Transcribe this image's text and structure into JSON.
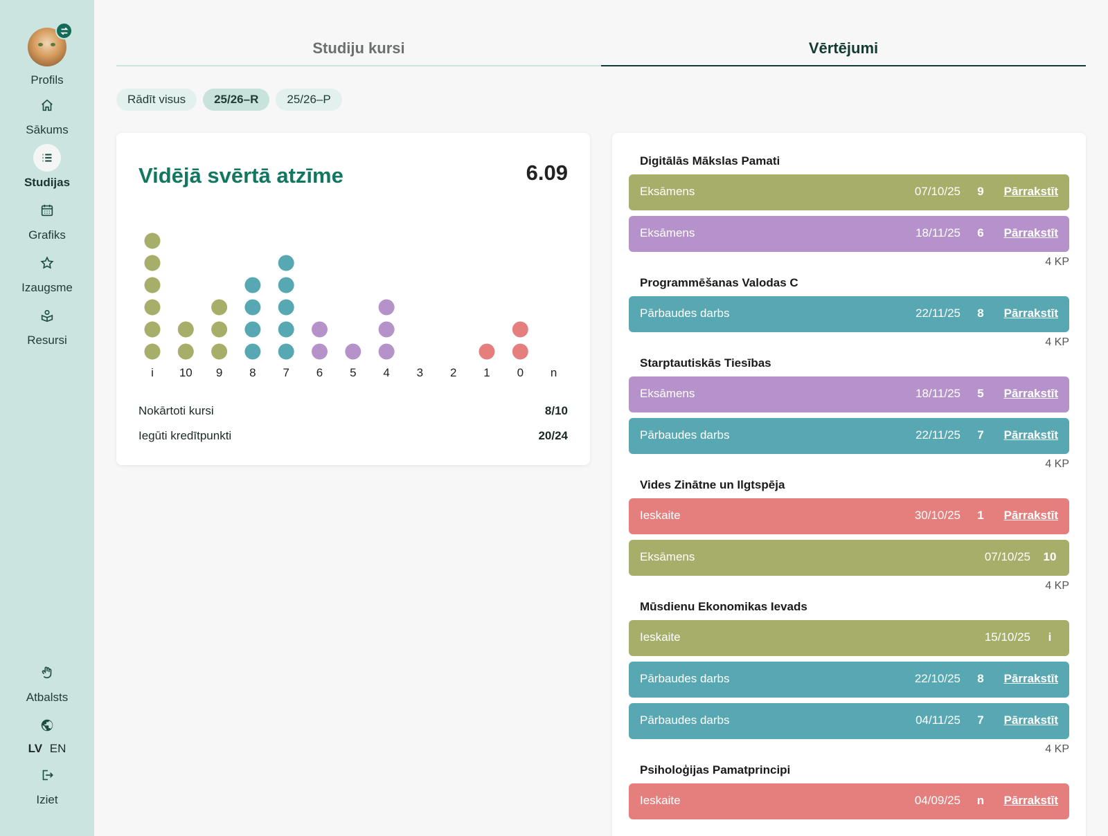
{
  "sidebar": {
    "profile_label": "Profils",
    "items": [
      {
        "label": "Sākums",
        "icon": "home-icon"
      },
      {
        "label": "Studijas",
        "icon": "list-icon"
      },
      {
        "label": "Grafiks",
        "icon": "calendar-icon"
      },
      {
        "label": "Izaugsme",
        "icon": "star-icon"
      },
      {
        "label": "Resursi",
        "icon": "resources-icon"
      }
    ],
    "support_label": "Atbalsts",
    "lang_lv": "LV",
    "lang_en": "EN",
    "logout_label": "Iziet"
  },
  "tabs": [
    {
      "label": "Studiju kursi",
      "active": false
    },
    {
      "label": "Vērtējumi",
      "active": true
    }
  ],
  "filters": [
    {
      "label": "Rādīt visus",
      "active": false
    },
    {
      "label": "25/26–R",
      "active": true
    },
    {
      "label": "25/26–P",
      "active": false
    }
  ],
  "summary": {
    "title": "Vidējā svērtā atzīme",
    "value": "6.09",
    "passed_label": "Nokārtoti kursi",
    "passed_value": "8/10",
    "credits_label": "Iegūti kredītpunkti",
    "credits_value": "20/24"
  },
  "colors": {
    "olive": "#a6ae6a",
    "teal": "#57a8b2",
    "purple": "#b692cb",
    "red": "#e57f7d",
    "brand": "#117760"
  },
  "chart_data": {
    "type": "dot",
    "categories": [
      "i",
      "10",
      "9",
      "8",
      "7",
      "6",
      "5",
      "4",
      "3",
      "2",
      "1",
      "0",
      "n"
    ],
    "series": [
      {
        "color": "olive",
        "values": [
          6,
          2,
          3,
          0,
          0,
          0,
          0,
          0,
          0,
          0,
          0,
          0,
          0
        ]
      },
      {
        "color": "teal",
        "values": [
          0,
          0,
          0,
          4,
          5,
          0,
          0,
          0,
          0,
          0,
          0,
          0,
          0
        ]
      },
      {
        "color": "purple",
        "values": [
          0,
          0,
          0,
          0,
          0,
          2,
          1,
          3,
          0,
          0,
          0,
          0,
          0
        ]
      },
      {
        "color": "red",
        "values": [
          0,
          0,
          0,
          0,
          0,
          0,
          0,
          0,
          0,
          0,
          1,
          2,
          0
        ]
      }
    ]
  },
  "courses": [
    {
      "name": "Digitālās Mākslas Pamati",
      "credits": "4 KP",
      "grades": [
        {
          "type": "Eksāmens",
          "date": "07/10/25",
          "mark": "9",
          "action": "Pārrakstīt",
          "color": "olive"
        },
        {
          "type": "Eksāmens",
          "date": "18/11/25",
          "mark": "6",
          "action": "Pārrakstīt",
          "color": "purple"
        }
      ]
    },
    {
      "name": "Programmēšanas Valodas C",
      "credits": "4 KP",
      "grades": [
        {
          "type": "Pārbaudes darbs",
          "date": "22/11/25",
          "mark": "8",
          "action": "Pārrakstīt",
          "color": "teal"
        }
      ]
    },
    {
      "name": "Starptautiskās Tiesības",
      "credits": "4 KP",
      "grades": [
        {
          "type": "Eksāmens",
          "date": "18/11/25",
          "mark": "5",
          "action": "Pārrakstīt",
          "color": "purple"
        },
        {
          "type": "Pārbaudes darbs",
          "date": "22/11/25",
          "mark": "7",
          "action": "Pārrakstīt",
          "color": "teal"
        }
      ]
    },
    {
      "name": "Vides Zinātne un Ilgtspēja",
      "credits": "4 KP",
      "grades": [
        {
          "type": "Ieskaite",
          "date": "30/10/25",
          "mark": "1",
          "action": "Pārrakstīt",
          "color": "red"
        },
        {
          "type": "Eksāmens",
          "date": "07/10/25",
          "mark": "10",
          "action": "",
          "color": "olive"
        }
      ]
    },
    {
      "name": "Mūsdienu Ekonomikas Ievads",
      "credits": "4 KP",
      "grades": [
        {
          "type": "Ieskaite",
          "date": "15/10/25",
          "mark": "i",
          "action": "",
          "color": "olive"
        },
        {
          "type": "Pārbaudes darbs",
          "date": "22/10/25",
          "mark": "8",
          "action": "Pārrakstīt",
          "color": "teal"
        },
        {
          "type": "Pārbaudes darbs",
          "date": "04/11/25",
          "mark": "7",
          "action": "Pārrakstīt",
          "color": "teal"
        }
      ]
    },
    {
      "name": "Psiholoģijas Pamatprincipi",
      "credits": "",
      "grades": [
        {
          "type": "Ieskaite",
          "date": "04/09/25",
          "mark": "n",
          "action": "Pārrakstīt",
          "color": "red"
        }
      ]
    }
  ]
}
